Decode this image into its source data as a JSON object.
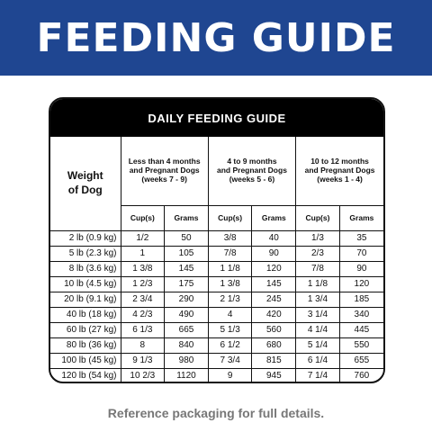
{
  "banner": {
    "title": "FEEDING GUIDE"
  },
  "table": {
    "title": "DAILY FEEDING GUIDE",
    "weight_header_line1": "Weight",
    "weight_header_line2": "of Dog",
    "groups": [
      {
        "line1": "Less than 4 months",
        "line2": "and Pregnant Dogs",
        "line3": "(weeks 7 - 9)"
      },
      {
        "line1": "4 to 9 months",
        "line2": "and Pregnant Dogs",
        "line3": "(weeks 5 - 6)"
      },
      {
        "line1": "10 to 12 months",
        "line2": "and Pregnant Dogs",
        "line3": "(weeks 1 - 4)"
      }
    ],
    "sub": {
      "cups": "Cup(s)",
      "grams": "Grams"
    },
    "rows": [
      {
        "weight": "2 lb (0.9 kg)",
        "c1": "1/2",
        "g1": "50",
        "c2": "3/8",
        "g2": "40",
        "c3": "1/3",
        "g3": "35"
      },
      {
        "weight": "5 lb (2.3 kg)",
        "c1": "1",
        "g1": "105",
        "c2": "7/8",
        "g2": "90",
        "c3": "2/3",
        "g3": "70"
      },
      {
        "weight": "8 lb (3.6 kg)",
        "c1": "1 3/8",
        "g1": "145",
        "c2": "1 1/8",
        "g2": "120",
        "c3": "7/8",
        "g3": "90"
      },
      {
        "weight": "10 lb (4.5 kg)",
        "c1": "1 2/3",
        "g1": "175",
        "c2": "1 3/8",
        "g2": "145",
        "c3": "1 1/8",
        "g3": "120"
      },
      {
        "weight": "20 lb (9.1 kg)",
        "c1": "2 3/4",
        "g1": "290",
        "c2": "2 1/3",
        "g2": "245",
        "c3": "1 3/4",
        "g3": "185"
      },
      {
        "weight": "40 lb (18 kg)",
        "c1": "4 2/3",
        "g1": "490",
        "c2": "4",
        "g2": "420",
        "c3": "3 1/4",
        "g3": "340"
      },
      {
        "weight": "60 lb (27 kg)",
        "c1": "6 1/3",
        "g1": "665",
        "c2": "5 1/3",
        "g2": "560",
        "c3": "4 1/4",
        "g3": "445"
      },
      {
        "weight": "80 lb (36 kg)",
        "c1": "8",
        "g1": "840",
        "c2": "6 1/2",
        "g2": "680",
        "c3": "5 1/4",
        "g3": "550"
      },
      {
        "weight": "100 lb (45 kg)",
        "c1": "9 1/3",
        "g1": "980",
        "c2": "7 3/4",
        "g2": "815",
        "c3": "6 1/4",
        "g3": "655"
      },
      {
        "weight": "120 lb (54 kg)",
        "c1": "10 2/3",
        "g1": "1120",
        "c2": "9",
        "g2": "945",
        "c3": "7 1/4",
        "g3": "760"
      }
    ]
  },
  "footer": {
    "note": "Reference packaging for full details."
  },
  "colors": {
    "banner": "#1f4691",
    "header": "#000000",
    "footer_text": "#777777"
  }
}
